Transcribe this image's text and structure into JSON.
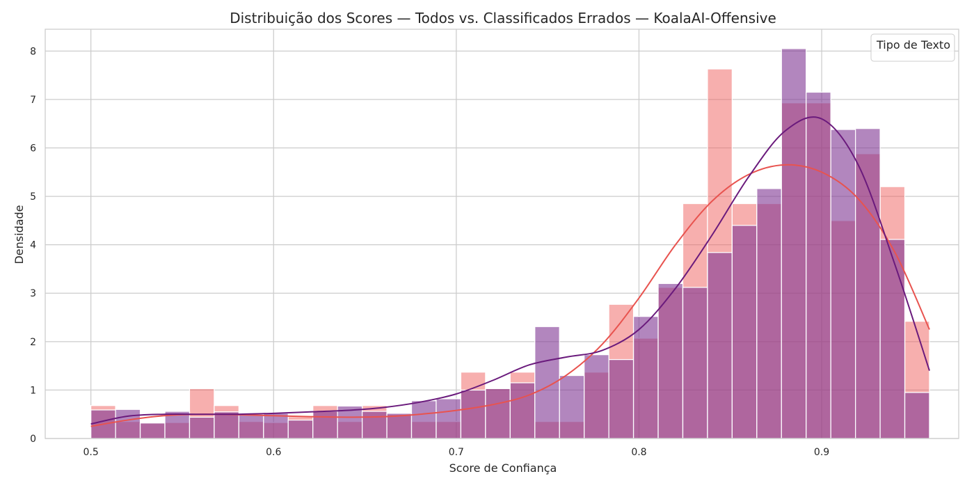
{
  "chart_data": {
    "type": "histogram",
    "title": "Distribuição dos Scores — Todos vs. Classificados Errados — KoalaAI-Offensive",
    "xlabel": "Score de Confiança",
    "ylabel": "Densidade",
    "xlim": [
      0.475,
      0.975
    ],
    "ylim": [
      0,
      8.45
    ],
    "xticks": [
      0.5,
      0.6,
      0.7,
      0.8,
      0.9
    ],
    "xtick_labels": [
      "0.5",
      "0.6",
      "0.7",
      "0.8",
      "0.9"
    ],
    "yticks": [
      0,
      1,
      2,
      3,
      4,
      5,
      6,
      7,
      8
    ],
    "ytick_labels": [
      "0",
      "1",
      "2",
      "3",
      "4",
      "5",
      "6",
      "7",
      "8"
    ],
    "grid": true,
    "legend": {
      "title": "Tipo de Texto",
      "placement": "top-right",
      "entries": []
    },
    "bin_edges": [
      0.5,
      0.5135,
      0.527,
      0.5405,
      0.554,
      0.5675,
      0.581,
      0.5945,
      0.608,
      0.6215,
      0.635,
      0.6485,
      0.662,
      0.6755,
      0.689,
      0.7025,
      0.716,
      0.7295,
      0.743,
      0.7565,
      0.77,
      0.7835,
      0.797,
      0.8105,
      0.824,
      0.8375,
      0.851,
      0.8645,
      0.878,
      0.8915,
      0.905,
      0.9185,
      0.932,
      0.9455,
      0.959
    ],
    "series": [
      {
        "color": "#f0605d",
        "values": [
          0.68,
          0.35,
          0.32,
          0.33,
          1.03,
          0.68,
          0.35,
          0.33,
          0.45,
          0.68,
          0.35,
          0.68,
          0.5,
          0.35,
          0.35,
          1.37,
          1.03,
          1.37,
          0.35,
          0.35,
          1.37,
          2.77,
          2.07,
          3.12,
          4.85,
          7.63,
          4.85,
          4.85,
          6.93,
          6.93,
          4.5,
          5.88,
          5.2,
          2.42
        ],
        "kde_x": [
          0.5,
          0.52,
          0.54,
          0.56,
          0.58,
          0.6,
          0.62,
          0.64,
          0.66,
          0.68,
          0.7,
          0.72,
          0.74,
          0.76,
          0.78,
          0.8,
          0.82,
          0.84,
          0.86,
          0.88,
          0.9,
          0.92,
          0.94,
          0.959
        ],
        "kde_y": [
          0.25,
          0.38,
          0.47,
          0.5,
          0.49,
          0.47,
          0.45,
          0.44,
          0.45,
          0.5,
          0.58,
          0.7,
          0.9,
          1.3,
          1.95,
          2.9,
          4.0,
          4.9,
          5.45,
          5.65,
          5.5,
          4.95,
          3.85,
          2.25
        ],
        "kde_color": "#e8534f"
      },
      {
        "color": "#7e3593",
        "values": [
          0.59,
          0.6,
          0.32,
          0.56,
          0.44,
          0.55,
          0.5,
          0.52,
          0.38,
          0.56,
          0.67,
          0.56,
          0.52,
          0.78,
          0.82,
          1.0,
          1.03,
          1.15,
          2.31,
          1.3,
          1.73,
          1.63,
          2.52,
          3.2,
          3.12,
          3.84,
          4.4,
          5.16,
          8.05,
          7.15,
          6.38,
          6.4,
          4.11,
          0.95
        ],
        "kde_x": [
          0.5,
          0.52,
          0.54,
          0.56,
          0.58,
          0.6,
          0.62,
          0.64,
          0.66,
          0.68,
          0.7,
          0.72,
          0.74,
          0.76,
          0.78,
          0.8,
          0.82,
          0.84,
          0.86,
          0.88,
          0.9,
          0.92,
          0.94,
          0.959
        ],
        "kde_y": [
          0.3,
          0.46,
          0.5,
          0.5,
          0.5,
          0.52,
          0.55,
          0.58,
          0.64,
          0.75,
          0.92,
          1.2,
          1.52,
          1.68,
          1.82,
          2.25,
          3.1,
          4.2,
          5.4,
          6.35,
          6.6,
          5.65,
          3.6,
          1.4
        ],
        "kde_color": "#6a1a7c"
      }
    ]
  }
}
